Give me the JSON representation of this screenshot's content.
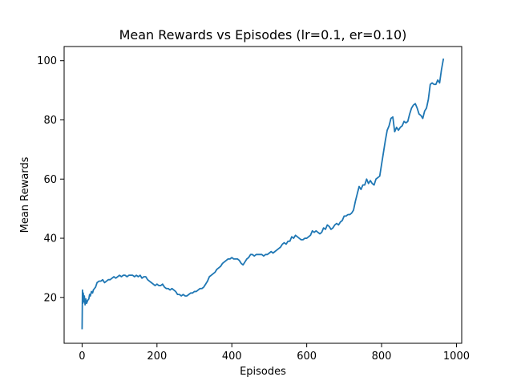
{
  "chart_data": {
    "type": "line",
    "title": "Mean Rewards vs Episodes (lr=0.1, er=0.10)",
    "xlabel": "Episodes",
    "ylabel": "Mean Rewards",
    "xlim": [
      -48,
      1014
    ],
    "ylim": [
      4.5,
      104.8
    ],
    "xticks": [
      0,
      200,
      400,
      600,
      800,
      1000
    ],
    "yticks": [
      20,
      40,
      60,
      80,
      100
    ],
    "grid": false,
    "legend": "none",
    "series": [
      {
        "color": "#1f77b4",
        "x": [
          0,
          1,
          2,
          3,
          5,
          6,
          8,
          10,
          12,
          15,
          18,
          20,
          22,
          25,
          28,
          30,
          33,
          36,
          40,
          45,
          50,
          55,
          60,
          65,
          70,
          75,
          80,
          85,
          90,
          95,
          100,
          105,
          110,
          115,
          120,
          125,
          130,
          135,
          140,
          145,
          150,
          155,
          160,
          165,
          170,
          175,
          180,
          185,
          190,
          195,
          200,
          205,
          210,
          215,
          220,
          225,
          230,
          235,
          240,
          245,
          250,
          255,
          260,
          265,
          270,
          275,
          280,
          285,
          290,
          295,
          300,
          305,
          310,
          315,
          320,
          325,
          330,
          335,
          340,
          345,
          350,
          355,
          360,
          365,
          370,
          375,
          380,
          385,
          390,
          395,
          400,
          405,
          410,
          415,
          420,
          425,
          430,
          435,
          440,
          445,
          450,
          455,
          460,
          465,
          470,
          475,
          480,
          485,
          490,
          495,
          500,
          505,
          510,
          515,
          520,
          525,
          530,
          535,
          540,
          545,
          550,
          555,
          560,
          565,
          570,
          575,
          580,
          585,
          590,
          595,
          600,
          605,
          610,
          615,
          620,
          625,
          630,
          635,
          640,
          645,
          650,
          655,
          660,
          665,
          670,
          675,
          680,
          685,
          690,
          695,
          700,
          705,
          710,
          715,
          720,
          725,
          730,
          735,
          740,
          745,
          750,
          755,
          760,
          765,
          770,
          775,
          780,
          785,
          790,
          795,
          800,
          805,
          810,
          815,
          820,
          825,
          830,
          835,
          840,
          845,
          850,
          855,
          860,
          865,
          870,
          875,
          880,
          885,
          890,
          895,
          900,
          905,
          910,
          915,
          920,
          925,
          930,
          935,
          940,
          945,
          950,
          955,
          960,
          965
        ],
        "y": [
          9.5,
          22.5,
          18.0,
          21.5,
          18.5,
          20.5,
          17.5,
          19.5,
          18.0,
          19.0,
          19.5,
          21.0,
          20.5,
          22.0,
          21.5,
          22.5,
          23.0,
          23.5,
          25.0,
          25.5,
          25.5,
          26.0,
          25.0,
          25.5,
          26.0,
          26.0,
          26.5,
          27.0,
          26.5,
          27.0,
          27.5,
          27.0,
          27.5,
          27.5,
          27.0,
          27.5,
          27.5,
          27.5,
          27.0,
          27.5,
          27.0,
          27.5,
          26.5,
          27.0,
          27.0,
          26.0,
          25.5,
          25.0,
          24.5,
          24.0,
          24.5,
          24.0,
          24.0,
          24.5,
          23.5,
          23.0,
          23.0,
          22.5,
          23.0,
          22.5,
          22.0,
          21.0,
          21.0,
          20.5,
          21.0,
          20.5,
          20.5,
          21.0,
          21.5,
          21.5,
          22.0,
          22.0,
          22.5,
          23.0,
          23.0,
          23.5,
          24.5,
          25.5,
          27.0,
          27.5,
          28.0,
          28.5,
          29.5,
          30.0,
          30.5,
          31.5,
          32.0,
          32.5,
          33.0,
          33.0,
          33.5,
          33.0,
          33.0,
          33.0,
          32.5,
          31.5,
          31.0,
          32.0,
          33.0,
          33.5,
          34.5,
          34.5,
          34.0,
          34.5,
          34.5,
          34.5,
          34.5,
          34.0,
          34.5,
          34.5,
          35.0,
          35.5,
          35.0,
          35.5,
          36.0,
          36.5,
          37.0,
          38.0,
          38.5,
          38.0,
          39.0,
          39.0,
          40.5,
          40.0,
          41.0,
          40.5,
          40.0,
          39.5,
          39.5,
          40.0,
          40.0,
          40.5,
          41.0,
          42.5,
          42.0,
          42.5,
          42.0,
          41.5,
          42.0,
          43.5,
          43.0,
          44.5,
          44.0,
          43.0,
          43.5,
          44.5,
          45.0,
          44.5,
          45.5,
          46.0,
          47.5,
          47.5,
          48.0,
          48.0,
          48.5,
          49.5,
          52.5,
          55.0,
          57.5,
          56.5,
          58.0,
          58.0,
          60.0,
          58.5,
          59.5,
          58.5,
          58.0,
          60.0,
          60.5,
          61.0,
          65.0,
          69.0,
          73.0,
          76.5,
          78.0,
          80.5,
          81.0,
          76.0,
          77.5,
          76.5,
          77.5,
          78.0,
          79.5,
          79.0,
          79.5,
          82.0,
          84.0,
          85.0,
          85.5,
          84.0,
          82.0,
          81.5,
          80.5,
          83.0,
          84.0,
          87.0,
          92.0,
          92.5,
          92.0,
          92.0,
          93.5,
          92.5,
          97.0,
          100.5
        ]
      }
    ]
  }
}
